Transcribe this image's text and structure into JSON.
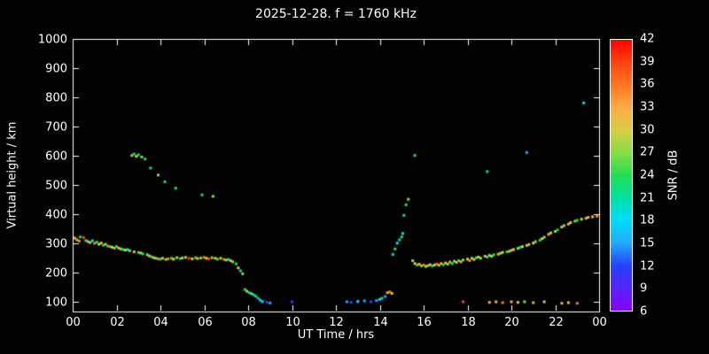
{
  "figure": {
    "background": "#000000",
    "axis_color": "#ffffff",
    "text_color": "#ffffff"
  },
  "chart_data": {
    "type": "scatter",
    "title": "2025-12-28. f = 1760 kHz",
    "xlabel": "UT Time / hrs",
    "ylabel": "Virtual height / km",
    "xlim": [
      0,
      24
    ],
    "ylim": [
      66.7,
      1000
    ],
    "grid": false,
    "x_tick_labels": [
      "00",
      "02",
      "04",
      "06",
      "08",
      "10",
      "12",
      "14",
      "16",
      "18",
      "20",
      "22",
      "00"
    ],
    "x_tick_values": [
      0,
      2,
      4,
      6,
      8,
      10,
      12,
      14,
      16,
      18,
      20,
      22,
      24
    ],
    "y_ticks": [
      100,
      200,
      300,
      400,
      500,
      600,
      700,
      800,
      900,
      1000
    ],
    "marker_size_px": 3,
    "colorbar": {
      "label": "SNR / dB",
      "min": 6,
      "max": 42,
      "tick_step": 3,
      "ticks": [
        6,
        9,
        12,
        15,
        18,
        21,
        24,
        27,
        30,
        33,
        36,
        39,
        42
      ],
      "colors": [
        "#8800ff",
        "#5522ff",
        "#2244ff",
        "#22aaff",
        "#00ddff",
        "#00e0a0",
        "#22dd55",
        "#88dd44",
        "#d8cc44",
        "#ffaa44",
        "#ff7720",
        "#ff4411",
        "#ff0000"
      ]
    },
    "points": [
      [
        0.1,
        318,
        33
      ],
      [
        0.2,
        312,
        27
      ],
      [
        0.3,
        308,
        36
      ],
      [
        0.35,
        322,
        24
      ],
      [
        0.5,
        320,
        39
      ],
      [
        0.6,
        310,
        21
      ],
      [
        0.7,
        306,
        33
      ],
      [
        0.8,
        303,
        27
      ],
      [
        0.9,
        309,
        18
      ],
      [
        1.0,
        300,
        36
      ],
      [
        1.1,
        304,
        24
      ],
      [
        1.2,
        297,
        30
      ],
      [
        1.3,
        301,
        33
      ],
      [
        1.4,
        294,
        21
      ],
      [
        1.5,
        297,
        27
      ],
      [
        1.6,
        291,
        36
      ],
      [
        1.7,
        289,
        24
      ],
      [
        1.8,
        287,
        30
      ],
      [
        1.9,
        284,
        27
      ],
      [
        2.0,
        289,
        21
      ],
      [
        2.1,
        284,
        33
      ],
      [
        2.2,
        281,
        27
      ],
      [
        2.3,
        279,
        24
      ],
      [
        2.4,
        277,
        30
      ],
      [
        2.5,
        279,
        18
      ],
      [
        2.6,
        275,
        27
      ],
      [
        2.8,
        271,
        33
      ],
      [
        3.0,
        269,
        24
      ],
      [
        3.1,
        267,
        30
      ],
      [
        3.2,
        264,
        21
      ],
      [
        3.4,
        261,
        27
      ],
      [
        3.5,
        257,
        33
      ],
      [
        3.6,
        254,
        24
      ],
      [
        3.7,
        251,
        30
      ],
      [
        3.8,
        249,
        27
      ],
      [
        3.9,
        247,
        36
      ],
      [
        4.0,
        246,
        21
      ],
      [
        4.1,
        249,
        33
      ],
      [
        4.25,
        245,
        27
      ],
      [
        4.35,
        247,
        36
      ],
      [
        4.5,
        249,
        24
      ],
      [
        4.6,
        246,
        30
      ],
      [
        4.75,
        251,
        27
      ],
      [
        4.9,
        248,
        21
      ],
      [
        5.0,
        250,
        33
      ],
      [
        5.15,
        252,
        27
      ],
      [
        5.3,
        249,
        39
      ],
      [
        5.45,
        247,
        30
      ],
      [
        5.6,
        251,
        24
      ],
      [
        5.7,
        248,
        33
      ],
      [
        5.85,
        250,
        27
      ],
      [
        6.0,
        252,
        36
      ],
      [
        6.1,
        249,
        30
      ],
      [
        6.2,
        247,
        39
      ],
      [
        6.35,
        251,
        27
      ],
      [
        6.5,
        249,
        33
      ],
      [
        6.6,
        246,
        24
      ],
      [
        6.75,
        249,
        30
      ],
      [
        6.9,
        245,
        36
      ],
      [
        7.0,
        243,
        27
      ],
      [
        7.1,
        245,
        21
      ],
      [
        7.2,
        241,
        33
      ],
      [
        7.3,
        237,
        27
      ],
      [
        7.45,
        230,
        24
      ],
      [
        7.55,
        216,
        30
      ],
      [
        7.65,
        206,
        21
      ],
      [
        7.75,
        196,
        27
      ],
      [
        7.85,
        142,
        24
      ],
      [
        7.95,
        136,
        30
      ],
      [
        8.05,
        131,
        21
      ],
      [
        8.15,
        128,
        27
      ],
      [
        8.25,
        124,
        18
      ],
      [
        8.35,
        119,
        24
      ],
      [
        8.45,
        112,
        15
      ],
      [
        8.55,
        106,
        21
      ],
      [
        8.65,
        101,
        18
      ],
      [
        8.85,
        98,
        12
      ],
      [
        9.0,
        96,
        15
      ],
      [
        2.7,
        601,
        27
      ],
      [
        2.8,
        606,
        24
      ],
      [
        2.9,
        598,
        30
      ],
      [
        3.0,
        603,
        21
      ],
      [
        3.15,
        596,
        27
      ],
      [
        3.3,
        589,
        24
      ],
      [
        3.55,
        558,
        21
      ],
      [
        3.9,
        534,
        27
      ],
      [
        4.2,
        511,
        24
      ],
      [
        4.7,
        489,
        21
      ],
      [
        5.9,
        466,
        24
      ],
      [
        6.4,
        461,
        27
      ],
      [
        10.0,
        100,
        12
      ],
      [
        12.5,
        100,
        15
      ],
      [
        12.7,
        98,
        12
      ],
      [
        13.0,
        101,
        18
      ],
      [
        13.3,
        103,
        15
      ],
      [
        13.6,
        100,
        12
      ],
      [
        13.85,
        104,
        15
      ],
      [
        14.0,
        108,
        18
      ],
      [
        14.1,
        112,
        21
      ],
      [
        14.25,
        118,
        15
      ],
      [
        14.35,
        131,
        33
      ],
      [
        14.45,
        134,
        36
      ],
      [
        14.55,
        129,
        30
      ],
      [
        14.6,
        262,
        21
      ],
      [
        14.7,
        281,
        24
      ],
      [
        14.8,
        301,
        18
      ],
      [
        14.9,
        312,
        21
      ],
      [
        15.0,
        322,
        24
      ],
      [
        15.05,
        334,
        18
      ],
      [
        15.1,
        396,
        21
      ],
      [
        15.2,
        432,
        24
      ],
      [
        15.3,
        451,
        27
      ],
      [
        15.6,
        601,
        24
      ],
      [
        15.5,
        241,
        27
      ],
      [
        15.6,
        231,
        30
      ],
      [
        15.7,
        226,
        24
      ],
      [
        15.8,
        229,
        33
      ],
      [
        15.9,
        223,
        27
      ],
      [
        16.0,
        226,
        36
      ],
      [
        16.1,
        221,
        30
      ],
      [
        16.2,
        224,
        27
      ],
      [
        16.3,
        227,
        33
      ],
      [
        16.4,
        223,
        21
      ],
      [
        16.5,
        226,
        30
      ],
      [
        16.6,
        229,
        36
      ],
      [
        16.7,
        225,
        27
      ],
      [
        16.8,
        231,
        33
      ],
      [
        16.9,
        227,
        24
      ],
      [
        17.0,
        233,
        30
      ],
      [
        17.1,
        229,
        27
      ],
      [
        17.2,
        236,
        33
      ],
      [
        17.3,
        231,
        21
      ],
      [
        17.4,
        239,
        27
      ],
      [
        17.5,
        235,
        30
      ],
      [
        17.6,
        241,
        24
      ],
      [
        17.7,
        237,
        33
      ],
      [
        17.8,
        243,
        27
      ],
      [
        18.0,
        246,
        30
      ],
      [
        18.1,
        241,
        36
      ],
      [
        18.2,
        249,
        27
      ],
      [
        18.3,
        245,
        33
      ],
      [
        18.4,
        251,
        24
      ],
      [
        18.5,
        253,
        30
      ],
      [
        18.6,
        249,
        27
      ],
      [
        18.8,
        256,
        33
      ],
      [
        18.9,
        253,
        21
      ],
      [
        19.0,
        259,
        27
      ],
      [
        19.1,
        256,
        30
      ],
      [
        19.2,
        261,
        24
      ],
      [
        19.4,
        263,
        33
      ],
      [
        19.5,
        266,
        27
      ],
      [
        19.6,
        269,
        30
      ],
      [
        19.8,
        271,
        24
      ],
      [
        19.9,
        273,
        27
      ],
      [
        20.0,
        276,
        33
      ],
      [
        20.1,
        279,
        30
      ],
      [
        20.3,
        283,
        27
      ],
      [
        20.4,
        286,
        24
      ],
      [
        20.5,
        289,
        30
      ],
      [
        20.7,
        293,
        27
      ],
      [
        20.8,
        296,
        33
      ],
      [
        21.0,
        301,
        30
      ],
      [
        21.1,
        306,
        27
      ],
      [
        21.3,
        311,
        24
      ],
      [
        21.4,
        316,
        30
      ],
      [
        21.5,
        321,
        27
      ],
      [
        21.7,
        331,
        33
      ],
      [
        21.8,
        336,
        30
      ],
      [
        22.0,
        341,
        27
      ],
      [
        22.1,
        346,
        24
      ],
      [
        22.3,
        356,
        30
      ],
      [
        22.4,
        361,
        27
      ],
      [
        22.6,
        366,
        33
      ],
      [
        22.7,
        371,
        30
      ],
      [
        22.9,
        376,
        27
      ],
      [
        23.0,
        379,
        24
      ],
      [
        23.2,
        383,
        30
      ],
      [
        23.4,
        386,
        27
      ],
      [
        23.5,
        389,
        33
      ],
      [
        23.7,
        391,
        30
      ],
      [
        23.9,
        393,
        36
      ],
      [
        17.8,
        100,
        39
      ],
      [
        19.0,
        98,
        33
      ],
      [
        19.3,
        100,
        30
      ],
      [
        19.6,
        97,
        36
      ],
      [
        20.0,
        100,
        33
      ],
      [
        20.3,
        98,
        30
      ],
      [
        20.6,
        100,
        27
      ],
      [
        21.0,
        97,
        33
      ],
      [
        21.5,
        100,
        30
      ],
      [
        22.3,
        95,
        33
      ],
      [
        22.6,
        97,
        30
      ],
      [
        23.0,
        95,
        36
      ],
      [
        18.9,
        546,
        21
      ],
      [
        20.7,
        611,
        15
      ],
      [
        23.3,
        781,
        18
      ]
    ]
  }
}
